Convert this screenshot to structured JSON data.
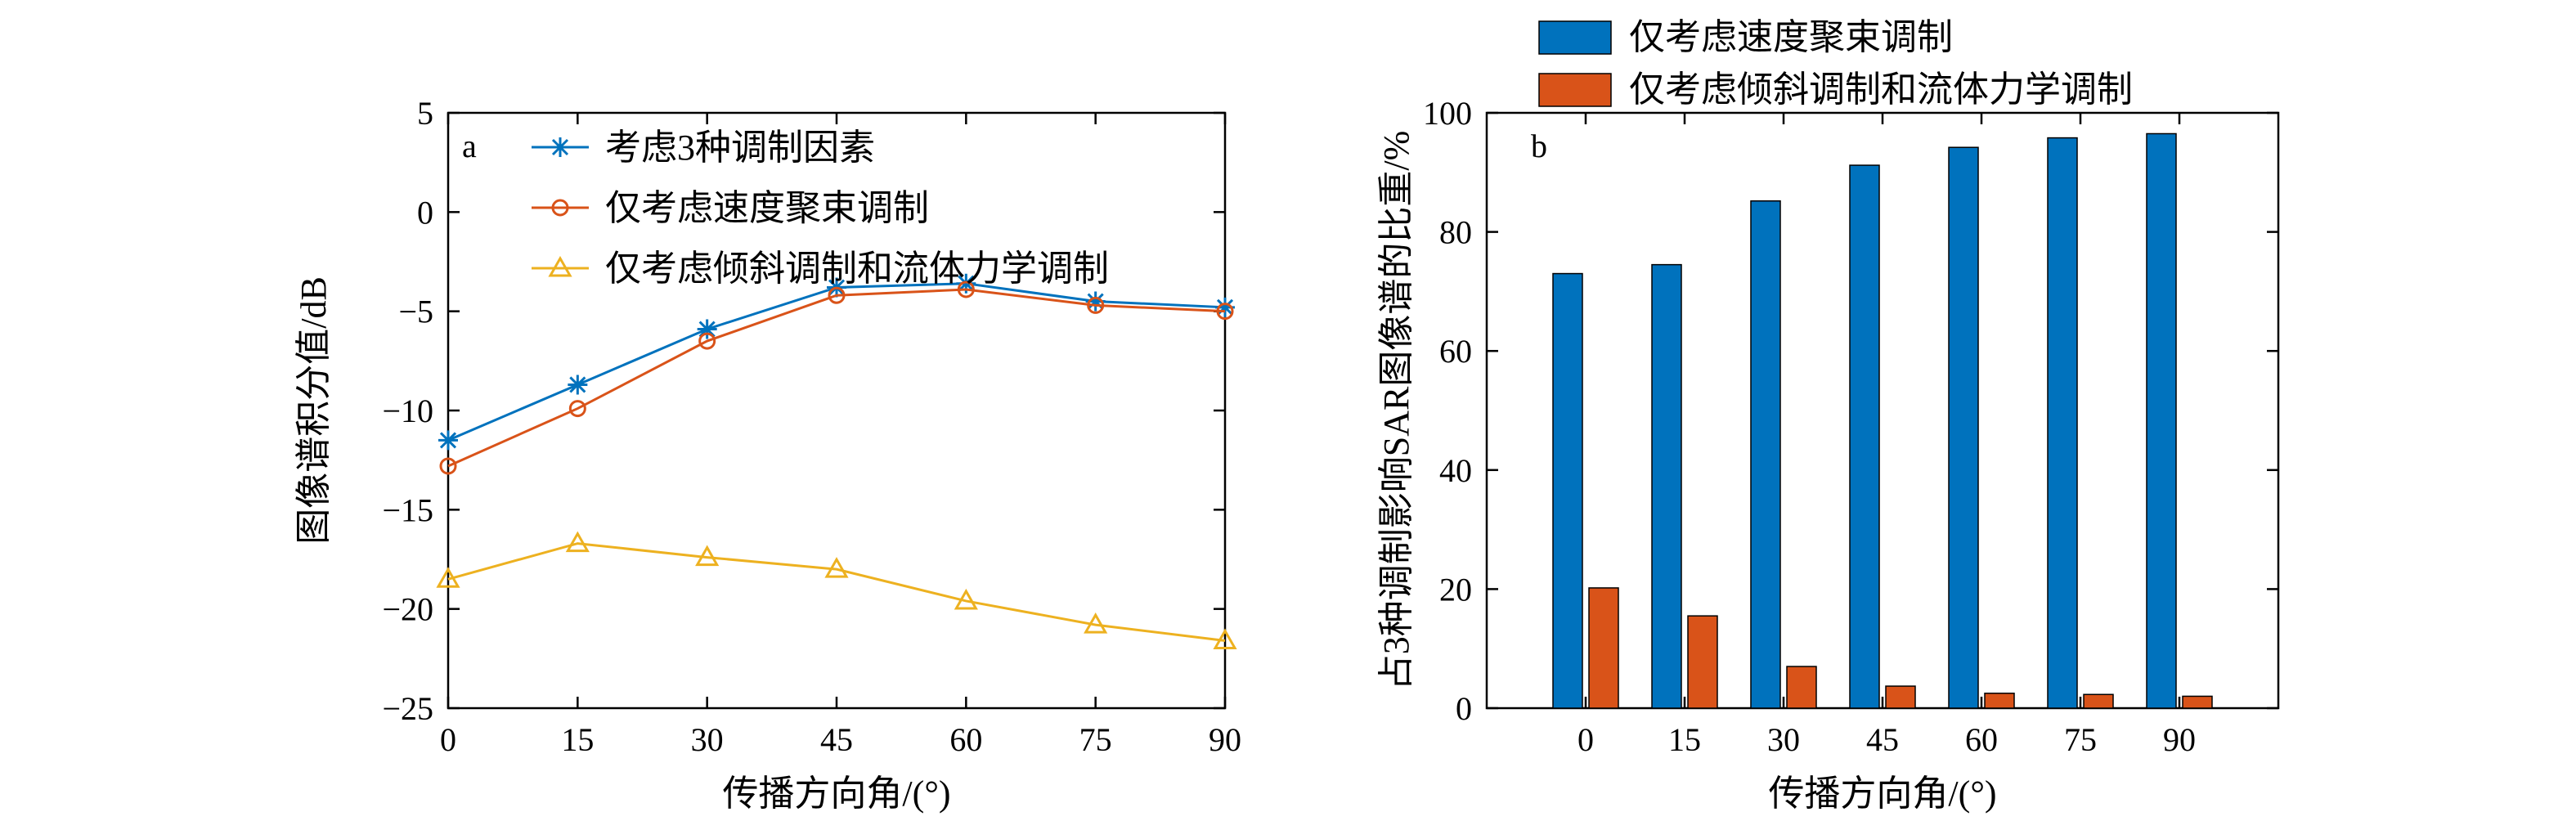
{
  "chart_data": [
    {
      "type": "line",
      "panel_label": "a",
      "x": [
        0,
        15,
        30,
        45,
        60,
        75,
        90
      ],
      "xticks": [
        "0",
        "15",
        "30",
        "45",
        "60",
        "75",
        "90"
      ],
      "xlabel": "传播方向角/(°)",
      "ylabel": "图像谱积分值/dB",
      "xlim": [
        0,
        90
      ],
      "ylim": [
        -25,
        5
      ],
      "yticks": [
        "5",
        "0",
        "−5",
        "−10",
        "−15",
        "−20",
        "−25"
      ],
      "ytick_values": [
        5,
        0,
        -5,
        -10,
        -15,
        -20,
        -25
      ],
      "grid": false,
      "legend_position": "top-left",
      "series": [
        {
          "name": "考虑3种调制因素",
          "marker": "star",
          "color": "#0072BD",
          "values": [
            -11.5,
            -8.7,
            -5.9,
            -3.8,
            -3.6,
            -4.5,
            -4.8
          ]
        },
        {
          "name": "仅考虑速度聚束调制",
          "marker": "circle",
          "color": "#D95319",
          "values": [
            -12.8,
            -9.9,
            -6.5,
            -4.2,
            -3.9,
            -4.7,
            -5.0
          ]
        },
        {
          "name": "仅考虑倾斜调制和流体力学调制",
          "marker": "triangle",
          "color": "#EDB120",
          "values": [
            -18.5,
            -16.7,
            -17.4,
            -18.0,
            -19.6,
            -20.8,
            -21.6
          ]
        }
      ]
    },
    {
      "type": "bar",
      "panel_label": "b",
      "categories": [
        "0",
        "15",
        "30",
        "45",
        "60",
        "75",
        "90"
      ],
      "xlabel": "传播方向角/(°)",
      "ylabel": "占3种调制影响SAR图像谱的比重/%",
      "ylim": [
        0,
        100
      ],
      "yticks": [
        "0",
        "20",
        "40",
        "60",
        "80",
        "100"
      ],
      "ytick_values": [
        0,
        20,
        40,
        60,
        80,
        100
      ],
      "grid": false,
      "legend_position": "top, outside",
      "series": [
        {
          "name": "仅考虑速度聚束调制",
          "color": "#0072BD",
          "values": [
            73,
            74.5,
            85.2,
            91.2,
            94.2,
            95.8,
            96.5
          ]
        },
        {
          "name": "仅考虑倾斜调制和流体力学调制",
          "color": "#D95319",
          "values": [
            20.2,
            15.5,
            7.0,
            3.7,
            2.5,
            2.3,
            2.0
          ]
        }
      ]
    }
  ]
}
